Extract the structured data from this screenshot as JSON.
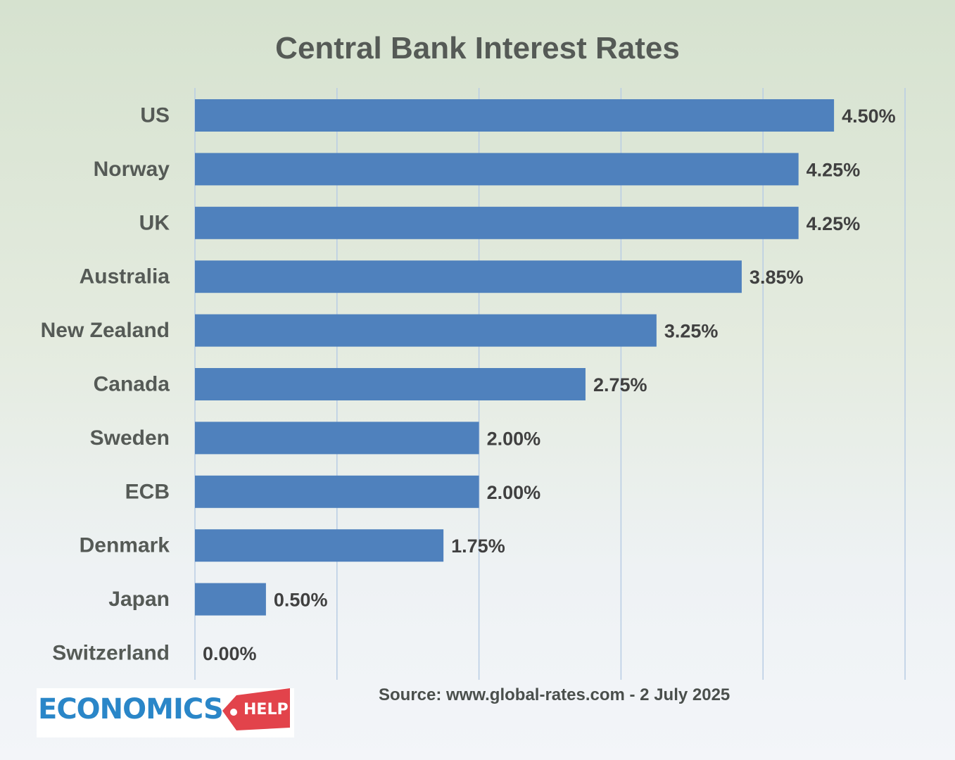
{
  "chart_data": {
    "type": "bar",
    "orientation": "horizontal",
    "title": "Central Bank Interest Rates",
    "categories": [
      "US",
      "Norway",
      "UK",
      "Australia",
      "New Zealand",
      "Canada",
      "Sweden",
      "ECB",
      "Denmark",
      "Japan",
      "Switzerland"
    ],
    "values": [
      4.5,
      4.25,
      4.25,
      3.85,
      3.25,
      2.75,
      2.0,
      2.0,
      1.75,
      0.5,
      0.0
    ],
    "data_labels": [
      "4.50%",
      "4.25%",
      "4.25%",
      "3.85%",
      "3.25%",
      "2.75%",
      "2.00%",
      "2.00%",
      "1.75%",
      "0.50%",
      "0.00%"
    ],
    "xlim": [
      0,
      5
    ],
    "grid": true,
    "bar_color": "#4f81bd",
    "gridline_color": "#b8cce4"
  },
  "footer": {
    "source": "Source: www.global-rates.com - 2 July 2025"
  },
  "logo": {
    "word": "ECONOMICS",
    "tag": "HELP",
    "word_color": "#2a86c8",
    "tag_color": "#e2434b"
  }
}
